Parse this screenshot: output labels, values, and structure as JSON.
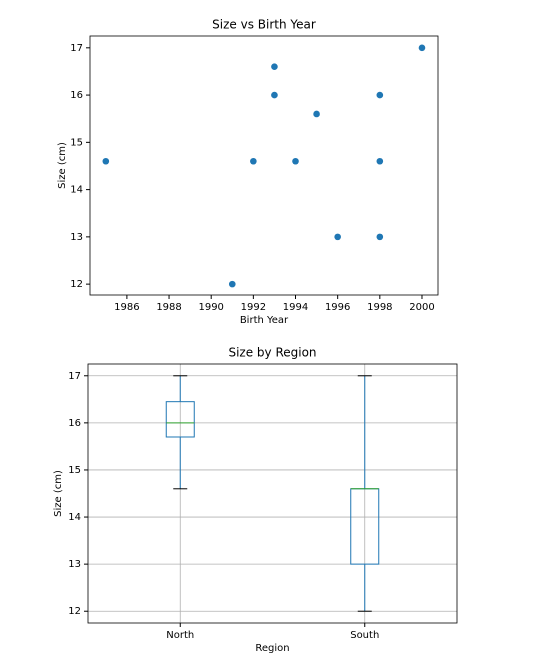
{
  "chart_data": [
    {
      "type": "scatter",
      "title": "Size vs Birth Year",
      "x_label": "Birth Year",
      "y_label": "Size (cm)",
      "color": "#1f77b4",
      "x": [
        1985,
        1991,
        1992,
        1993,
        1993,
        1994,
        1995,
        1996,
        1998,
        1998,
        1998,
        2000
      ],
      "values": [
        14.6,
        12,
        14.6,
        16.6,
        16,
        14.6,
        15.6,
        13,
        16,
        14.6,
        13,
        17
      ],
      "xlim": [
        1984.25,
        2000.76
      ],
      "xticks": [
        1986,
        1988,
        1990,
        1992,
        1994,
        1996,
        1998,
        2000
      ],
      "ylim": [
        11.77,
        17.25
      ],
      "yticks": [
        12,
        13,
        14,
        15,
        16,
        17
      ],
      "grid": false
    },
    {
      "type": "box",
      "title": "Size by Region",
      "x_label": "Region",
      "y_label": "Size (cm)",
      "color": "#1f77b4",
      "median_color": "#2ca02c",
      "categories": [
        "North",
        "South"
      ],
      "boxes": [
        {
          "whislo": 14.6,
          "q1": 15.7,
          "med": 16,
          "q3": 16.45,
          "whishi": 17
        },
        {
          "whislo": 12,
          "q1": 13,
          "med": 14.6,
          "q3": 14.6,
          "whishi": 17
        }
      ],
      "ylim": [
        11.75,
        17.25
      ],
      "yticks": [
        12,
        13,
        14,
        15,
        16,
        17
      ],
      "grid": true
    }
  ]
}
